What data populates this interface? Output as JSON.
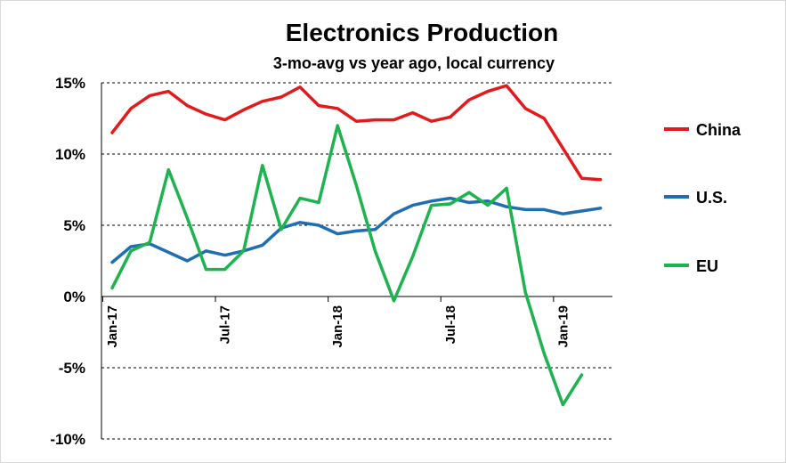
{
  "chart_data": {
    "type": "line",
    "title": "Electronics Production",
    "subtitle": "3-mo-avg vs year ago, local currency",
    "xlabel": "",
    "ylabel": "",
    "ylim": [
      -10,
      15
    ],
    "yticks": [
      15,
      10,
      5,
      0,
      -5,
      -10
    ],
    "ytick_labels": [
      "15%",
      "10%",
      "5%",
      "0%",
      "-5%",
      "-10%"
    ],
    "y_grid": "dashed",
    "legend_position": "right",
    "categories": [
      "Jan-17",
      "Feb-17",
      "Mar-17",
      "Apr-17",
      "May-17",
      "Jun-17",
      "Jul-17",
      "Aug-17",
      "Sep-17",
      "Oct-17",
      "Nov-17",
      "Dec-17",
      "Jan-18",
      "Feb-18",
      "Mar-18",
      "Apr-18",
      "May-18",
      "Jun-18",
      "Jul-18",
      "Aug-18",
      "Sep-18",
      "Oct-18",
      "Nov-18",
      "Dec-18",
      "Jan-19",
      "Feb-19",
      "Mar-19",
      "Apr-19"
    ],
    "x_tick_labels": [
      {
        "index": 0,
        "label": "Jan-17"
      },
      {
        "index": 6,
        "label": "Jul-17"
      },
      {
        "index": 12,
        "label": "Jan-18"
      },
      {
        "index": 18,
        "label": "Jul-18"
      },
      {
        "index": 24,
        "label": "Jan-19"
      }
    ],
    "series": [
      {
        "name": "China",
        "color": "#e31a1c",
        "values": [
          11.5,
          13.2,
          14.1,
          14.4,
          13.4,
          12.8,
          12.4,
          13.1,
          13.7,
          14.0,
          14.7,
          13.4,
          13.2,
          12.3,
          12.4,
          12.4,
          12.9,
          12.3,
          12.6,
          13.8,
          14.4,
          14.8,
          13.2,
          12.5,
          10.4,
          8.3,
          8.2,
          null
        ]
      },
      {
        "name": "U.S.",
        "color": "#1f6eb4",
        "values": [
          2.4,
          3.5,
          3.7,
          3.1,
          2.5,
          3.2,
          2.9,
          3.2,
          3.6,
          4.8,
          5.2,
          5.0,
          4.4,
          4.6,
          4.7,
          5.8,
          6.4,
          6.7,
          6.9,
          6.6,
          6.7,
          6.3,
          6.1,
          6.1,
          5.8,
          6.0,
          6.2,
          null
        ]
      },
      {
        "name": "EU",
        "color": "#1db34f",
        "values": [
          0.6,
          3.2,
          3.8,
          8.9,
          5.5,
          1.9,
          1.9,
          3.2,
          9.2,
          4.7,
          6.9,
          6.6,
          12.0,
          7.8,
          3.2,
          -0.3,
          2.8,
          6.4,
          6.5,
          7.3,
          6.4,
          7.6,
          0.3,
          -4.0,
          -7.6,
          -5.5,
          null,
          null
        ]
      }
    ]
  }
}
